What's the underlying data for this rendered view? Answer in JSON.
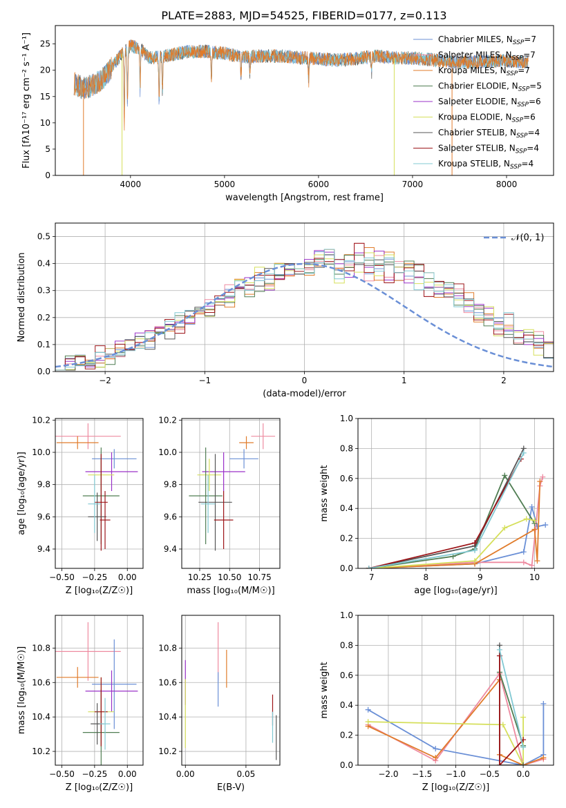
{
  "figure": {
    "title": "PLATE=2883, MJD=54525, FIBERID=0177, z=0.113"
  },
  "series": [
    {
      "name": "Chabrier MILES",
      "nssp": "7",
      "color": "#6a8fd6"
    },
    {
      "name": "Salpeter MILES",
      "nssp": "7",
      "color": "#ee8aa0"
    },
    {
      "name": "Kroupa MILES",
      "nssp": "7",
      "color": "#e07b2a"
    },
    {
      "name": "Chabrier ELODIE",
      "nssp": "5",
      "color": "#4f7d52"
    },
    {
      "name": "Salpeter ELODIE",
      "nssp": "6",
      "color": "#9a30c8"
    },
    {
      "name": "Kroupa ELODIE",
      "nssp": "6",
      "color": "#d5df5a"
    },
    {
      "name": "Chabrier STELIB",
      "nssp": "4",
      "color": "#555555"
    },
    {
      "name": "Salpeter STELIB",
      "nssp": "4",
      "color": "#9c1418"
    },
    {
      "name": "Kroupa STELIB",
      "nssp": "4",
      "color": "#80c8d2"
    }
  ],
  "chart_data": [
    {
      "id": "spectrum",
      "type": "line",
      "xlabel": "wavelength [Angstrom, rest frame]",
      "ylabel": "Flux [fλ10⁻¹⁷ erg cm⁻² s⁻¹ A⁻¹]",
      "xlim": [
        3200,
        8500
      ],
      "ylim": [
        0,
        28.5
      ],
      "xticks": [
        4000,
        5000,
        6000,
        7000,
        8000
      ],
      "yticks": [
        0,
        5,
        10,
        15,
        20,
        25
      ],
      "grid": false,
      "legend": "top-right",
      "continuum": {
        "x": [
          3400,
          3500,
          3600,
          3700,
          3800,
          3900,
          4000,
          4100,
          4200,
          4400,
          4600,
          4800,
          5000,
          5200,
          5400,
          5600,
          5800,
          6000,
          6200,
          6400,
          6600,
          6800,
          7000,
          7200,
          7400,
          7600,
          7800,
          8000,
          8230
        ],
        "y": [
          17.5,
          16.5,
          17.2,
          18.3,
          20.5,
          23.0,
          24.6,
          24.2,
          22.3,
          22.8,
          23.5,
          23.6,
          23.2,
          22.5,
          22.7,
          22.7,
          22.4,
          22.2,
          21.9,
          22.2,
          22.7,
          22.4,
          22.3,
          22.0,
          21.6,
          21.5,
          21.7,
          21.8,
          21.5
        ]
      },
      "absorption_lines": [
        {
          "x": 3934,
          "depth": 12
        },
        {
          "x": 3968,
          "depth": 10
        },
        {
          "x": 4102,
          "depth": 7
        },
        {
          "x": 4305,
          "depth": 8
        },
        {
          "x": 4340,
          "depth": 6
        },
        {
          "x": 4861,
          "depth": 5
        },
        {
          "x": 5175,
          "depth": 4
        },
        {
          "x": 5270,
          "depth": 3
        },
        {
          "x": 5895,
          "depth": 4
        },
        {
          "x": 6563,
          "depth": 3
        }
      ],
      "edge_drops": [
        {
          "x": 3500,
          "color": "#e07b2a"
        },
        {
          "x": 3910,
          "color": "#d5df5a"
        },
        {
          "x": 6805,
          "color": "#d5df5a"
        },
        {
          "x": 7420,
          "color": "#e07b2a"
        }
      ]
    },
    {
      "id": "residuals",
      "type": "histogram",
      "xlabel": "(data-model)/error",
      "ylabel": "Normed distribution",
      "xlim": [
        -2.5,
        2.5
      ],
      "ylim": [
        0,
        0.55
      ],
      "xticks": [
        -2,
        -1,
        0,
        1,
        2
      ],
      "yticks": [
        0.0,
        0.1,
        0.2,
        0.3,
        0.4,
        0.5
      ],
      "grid": true,
      "legend": "top-right",
      "gaussian_label": "𝒩(0, 1)",
      "gaussian_color": "#6a8fd6",
      "bin_width": 0.1,
      "histograms": [
        [
          0.03,
          0.03,
          0.04,
          0.05,
          0.04,
          0.06,
          0.08,
          0.09,
          0.12,
          0.1,
          0.13,
          0.14,
          0.18,
          0.19,
          0.21,
          0.23,
          0.24,
          0.28,
          0.3,
          0.31,
          0.33,
          0.35,
          0.36,
          0.38,
          0.39,
          0.4,
          0.41,
          0.4,
          0.38,
          0.4,
          0.42,
          0.39,
          0.4,
          0.4,
          0.37,
          0.38,
          0.36,
          0.33,
          0.31,
          0.3,
          0.27,
          0.24,
          0.23,
          0.2,
          0.18,
          0.16,
          0.13,
          0.12,
          0.1,
          0.07
        ],
        [
          0.02,
          0.03,
          0.05,
          0.04,
          0.07,
          0.06,
          0.08,
          0.1,
          0.11,
          0.12,
          0.15,
          0.16,
          0.17,
          0.21,
          0.22,
          0.25,
          0.27,
          0.29,
          0.3,
          0.32,
          0.34,
          0.33,
          0.37,
          0.37,
          0.4,
          0.39,
          0.43,
          0.41,
          0.39,
          0.38,
          0.44,
          0.37,
          0.42,
          0.36,
          0.4,
          0.35,
          0.37,
          0.31,
          0.32,
          0.28,
          0.29,
          0.25,
          0.22,
          0.21,
          0.17,
          0.18,
          0.14,
          0.11,
          0.12,
          0.08
        ],
        [
          0.04,
          0.02,
          0.03,
          0.06,
          0.05,
          0.07,
          0.07,
          0.11,
          0.1,
          0.14,
          0.13,
          0.17,
          0.19,
          0.2,
          0.24,
          0.22,
          0.28,
          0.27,
          0.33,
          0.31,
          0.36,
          0.34,
          0.38,
          0.36,
          0.41,
          0.38,
          0.4,
          0.42,
          0.36,
          0.41,
          0.38,
          0.43,
          0.37,
          0.41,
          0.36,
          0.39,
          0.33,
          0.34,
          0.29,
          0.31,
          0.26,
          0.27,
          0.21,
          0.23,
          0.16,
          0.19,
          0.12,
          0.13,
          0.09,
          0.1
        ]
      ]
    },
    {
      "id": "age-vs-Z",
      "type": "errorbar",
      "xlabel": "Z [log₁₀(Z/Z☉)]",
      "ylabel": "age  [log₁₀(age/yr)]",
      "xlim": [
        -0.55,
        0.12
      ],
      "ylim": [
        9.28,
        10.21
      ],
      "xticks": [
        -0.5,
        -0.25,
        0.0
      ],
      "yticks": [
        9.4,
        9.6,
        9.8,
        10.0,
        10.2
      ],
      "grid": true,
      "points": [
        {
          "x": -0.3,
          "y": 10.1,
          "xerr": 0.25,
          "yerr": 0.08,
          "series": 1
        },
        {
          "x": -0.38,
          "y": 10.06,
          "xerr": 0.16,
          "yerr": 0.04,
          "series": 2
        },
        {
          "x": -0.1,
          "y": 9.96,
          "xerr": 0.17,
          "yerr": 0.06,
          "series": 0
        },
        {
          "x": -0.12,
          "y": 9.88,
          "xerr": 0.2,
          "yerr": 0.12,
          "series": 4
        },
        {
          "x": -0.2,
          "y": 9.86,
          "xerr": 0.1,
          "yerr": 0.1,
          "series": 5
        },
        {
          "x": -0.2,
          "y": 9.73,
          "xerr": 0.14,
          "yerr": 0.3,
          "series": 3
        },
        {
          "x": -0.2,
          "y": 9.69,
          "xerr": 0.05,
          "yerr": 0.3,
          "series": 7
        },
        {
          "x": -0.23,
          "y": 9.6,
          "xerr": 0.07,
          "yerr": 0.15,
          "series": 6
        },
        {
          "x": -0.17,
          "y": 9.58,
          "xerr": 0.04,
          "yerr": 0.18,
          "series": 7
        },
        {
          "x": -0.25,
          "y": 9.68,
          "xerr": 0.05,
          "yerr": 0.18,
          "series": 8
        }
      ]
    },
    {
      "id": "age-vs-mass",
      "type": "errorbar",
      "xlabel": "mass [log₁₀(M/M☉)]",
      "ylabel": "",
      "xlim": [
        10.1,
        10.92
      ],
      "ylim": [
        9.28,
        10.21
      ],
      "xticks": [
        10.25,
        10.5,
        10.75
      ],
      "yticks": [
        9.4,
        9.6,
        9.8,
        10.0,
        10.2
      ],
      "grid": true,
      "points": [
        {
          "x": 10.78,
          "y": 10.1,
          "xerr": 0.1,
          "yerr": 0.08,
          "series": 1
        },
        {
          "x": 10.64,
          "y": 10.06,
          "xerr": 0.06,
          "yerr": 0.04,
          "series": 2
        },
        {
          "x": 10.62,
          "y": 9.96,
          "xerr": 0.12,
          "yerr": 0.06,
          "series": 0
        },
        {
          "x": 10.45,
          "y": 9.88,
          "xerr": 0.18,
          "yerr": 0.12,
          "series": 4
        },
        {
          "x": 10.33,
          "y": 9.86,
          "xerr": 0.1,
          "yerr": 0.1,
          "series": 5
        },
        {
          "x": 10.3,
          "y": 9.73,
          "xerr": 0.14,
          "yerr": 0.3,
          "series": 3
        },
        {
          "x": 10.38,
          "y": 9.69,
          "xerr": 0.14,
          "yerr": 0.3,
          "series": 6
        },
        {
          "x": 10.45,
          "y": 9.58,
          "xerr": 0.08,
          "yerr": 0.18,
          "series": 7
        },
        {
          "x": 10.32,
          "y": 9.68,
          "xerr": 0.06,
          "yerr": 0.18,
          "series": 8
        }
      ]
    },
    {
      "id": "weight-vs-age",
      "type": "line",
      "xlabel": "age  [log₁₀(age/yr)]",
      "ylabel": "mass weight",
      "xlim": [
        6.75,
        10.35
      ],
      "ylim": [
        0,
        1.0
      ],
      "xticks": [
        7,
        8,
        9,
        10
      ],
      "yticks": [
        0.0,
        0.2,
        0.4,
        0.6,
        0.8,
        1.0
      ],
      "grid": true,
      "lines": [
        {
          "series": 0,
          "x": [
            6.95,
            8.9,
            9.8,
            9.95,
            10.05,
            10.2
          ],
          "y": [
            0.0,
            0.03,
            0.11,
            0.41,
            0.28,
            0.29
          ]
        },
        {
          "series": 1,
          "x": [
            6.95,
            8.9,
            9.8,
            9.95,
            10.1,
            10.15
          ],
          "y": [
            0.0,
            0.04,
            0.04,
            0.02,
            0.55,
            0.61
          ]
        },
        {
          "series": 2,
          "x": [
            6.95,
            8.9,
            10.0,
            10.05,
            10.1
          ],
          "y": [
            0.0,
            0.03,
            0.26,
            0.05,
            0.58
          ]
        },
        {
          "series": 3,
          "x": [
            6.95,
            8.5,
            8.9,
            9.45,
            10.0
          ],
          "y": [
            0.0,
            0.08,
            0.13,
            0.62,
            0.3
          ]
        },
        {
          "series": 5,
          "x": [
            6.95,
            8.9,
            9.45,
            9.85,
            10.0
          ],
          "y": [
            0.0,
            0.05,
            0.27,
            0.33,
            0.32
          ]
        },
        {
          "series": 6,
          "x": [
            6.95,
            8.9,
            9.8
          ],
          "y": [
            0.0,
            0.15,
            0.8
          ]
        },
        {
          "series": 7,
          "x": [
            6.95,
            8.9,
            9.75
          ],
          "y": [
            0.0,
            0.17,
            0.73
          ]
        },
        {
          "series": 8,
          "x": [
            6.95,
            8.9,
            9.8
          ],
          "y": [
            0.0,
            0.12,
            0.77
          ]
        }
      ]
    },
    {
      "id": "mass-vs-Z",
      "type": "errorbar",
      "xlabel": "Z [log₁₀(Z/Z☉)]",
      "ylabel": "mass [log₁₀(M/M☉)]",
      "xlim": [
        -0.55,
        0.12
      ],
      "ylim": [
        10.12,
        10.99
      ],
      "xticks": [
        -0.5,
        -0.25,
        0.0
      ],
      "yticks": [
        10.2,
        10.4,
        10.6,
        10.8
      ],
      "grid": true,
      "points": [
        {
          "x": -0.3,
          "y": 10.78,
          "xerr": 0.25,
          "yerr": 0.17,
          "series": 1
        },
        {
          "x": -0.38,
          "y": 10.63,
          "xerr": 0.16,
          "yerr": 0.06,
          "series": 2
        },
        {
          "x": -0.1,
          "y": 10.59,
          "xerr": 0.17,
          "yerr": 0.26,
          "series": 0
        },
        {
          "x": -0.12,
          "y": 10.55,
          "xerr": 0.2,
          "yerr": 0.12,
          "series": 4
        },
        {
          "x": -0.2,
          "y": 10.43,
          "xerr": 0.1,
          "yerr": 0.2,
          "series": 5
        },
        {
          "x": -0.2,
          "y": 10.31,
          "xerr": 0.14,
          "yerr": 0.25,
          "series": 3
        },
        {
          "x": -0.2,
          "y": 10.43,
          "xerr": 0.05,
          "yerr": 0.2,
          "series": 7
        },
        {
          "x": -0.23,
          "y": 10.36,
          "xerr": 0.05,
          "yerr": 0.12,
          "series": 6
        },
        {
          "x": -0.17,
          "y": 10.36,
          "xerr": 0.04,
          "yerr": 0.15,
          "series": 8
        }
      ]
    },
    {
      "id": "mass-vs-ebv",
      "type": "errorbar",
      "xlabel": "E(B-V)",
      "ylabel": "",
      "xlim": [
        -0.003,
        0.078
      ],
      "ylim": [
        10.12,
        10.99
      ],
      "xticks": [
        0.0,
        0.05
      ],
      "xticklabels": [
        "0.00",
        "0.05"
      ],
      "yticks": [
        10.2,
        10.4,
        10.6,
        10.8
      ],
      "grid": true,
      "points": [
        {
          "x": 0.0,
          "y": 10.6,
          "xerr": 0,
          "yerr": 0.13,
          "series": 4
        },
        {
          "x": 0.0,
          "y": 10.42,
          "xerr": 0,
          "yerr": 0.2,
          "series": 5
        },
        {
          "x": 0.027,
          "y": 10.78,
          "xerr": 0,
          "yerr": 0.17,
          "series": 1
        },
        {
          "x": 0.027,
          "y": 10.56,
          "xerr": 0,
          "yerr": 0.1,
          "series": 0
        },
        {
          "x": 0.034,
          "y": 10.68,
          "xerr": 0,
          "yerr": 0.11,
          "series": 2
        },
        {
          "x": 0.072,
          "y": 10.44,
          "xerr": 0,
          "yerr": 0.09,
          "series": 7
        },
        {
          "x": 0.072,
          "y": 10.34,
          "xerr": 0,
          "yerr": 0.09,
          "series": 8
        },
        {
          "x": 0.075,
          "y": 10.28,
          "xerr": 0,
          "yerr": 0.13,
          "series": 6
        }
      ]
    },
    {
      "id": "weight-vs-Z",
      "type": "line",
      "xlabel": "Z [log₁₀(Z/Z☉)]",
      "ylabel": "mass weight",
      "xlim": [
        -2.45,
        0.45
      ],
      "ylim": [
        0,
        1.0
      ],
      "xticks": [
        -2.0,
        -1.5,
        -1.0,
        -0.5,
        0.0
      ],
      "yticks": [
        0.0,
        0.2,
        0.4,
        0.6,
        0.8,
        1.0
      ],
      "grid": true,
      "lines": [
        {
          "series": 0,
          "x": [
            -2.3,
            -1.3,
            0.0,
            0.3,
            0.3
          ],
          "y": [
            0.37,
            0.11,
            0.0,
            0.07,
            0.41
          ]
        },
        {
          "series": 1,
          "x": [
            -2.3,
            -1.3,
            -0.35,
            0.0,
            0.3
          ],
          "y": [
            0.27,
            0.03,
            0.61,
            0.0,
            0.04
          ]
        },
        {
          "series": 2,
          "x": [
            -2.3,
            -1.3,
            -0.35,
            -0.35,
            0.0,
            0.3
          ],
          "y": [
            0.26,
            0.05,
            0.57,
            0.07,
            0.0,
            0.05
          ]
        },
        {
          "series": 3,
          "x": [
            -0.35,
            0.0
          ],
          "y": [
            0.62,
            0.13
          ]
        },
        {
          "series": 5,
          "x": [
            -2.3,
            -0.3,
            0.0,
            0.0
          ],
          "y": [
            0.29,
            0.27,
            0.0,
            0.32
          ]
        },
        {
          "series": 6,
          "x": [
            -0.35,
            -0.35,
            0.0
          ],
          "y": [
            0.8,
            0.0,
            0.0
          ]
        },
        {
          "series": 7,
          "x": [
            -0.35,
            -0.35,
            0.0
          ],
          "y": [
            0.73,
            0.0,
            0.17
          ]
        },
        {
          "series": 8,
          "x": [
            -0.35,
            0.0
          ],
          "y": [
            0.77,
            0.12
          ]
        }
      ]
    }
  ]
}
